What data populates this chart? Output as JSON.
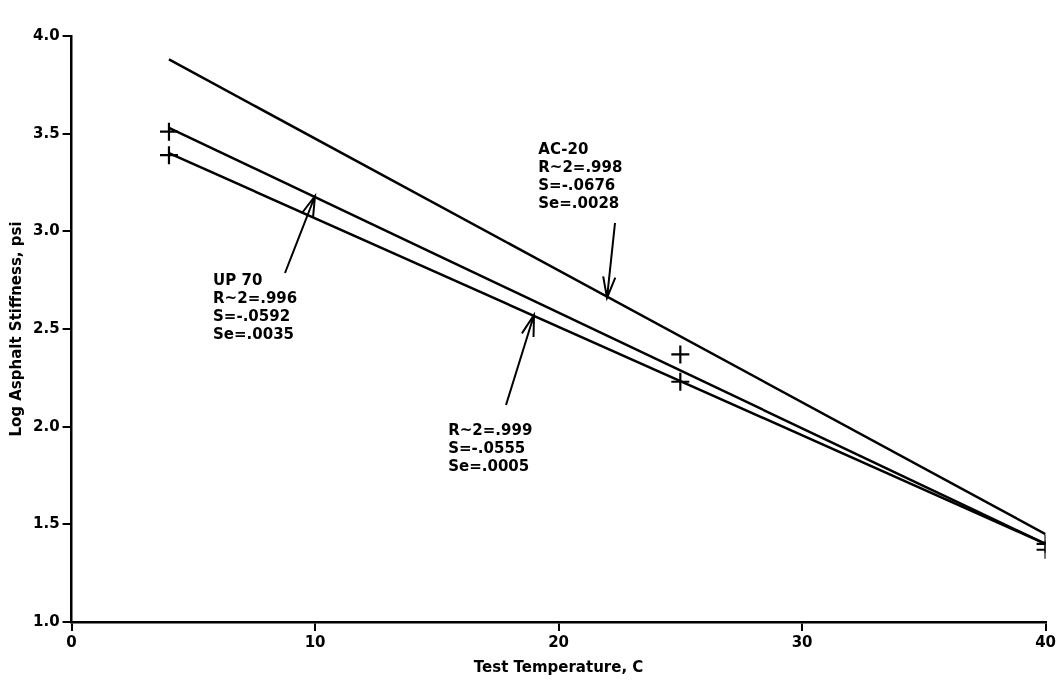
{
  "chart_data": {
    "type": "line",
    "xlabel": "Test Temperature, C",
    "ylabel": "Log Asphalt Stiffness, psi",
    "xlim": [
      0,
      40
    ],
    "xticks": [
      0,
      10,
      20,
      30,
      40
    ],
    "ylim": [
      1,
      4
    ],
    "yticks": [
      {
        "value": 1,
        "label": "1.0"
      },
      {
        "value": 1.5,
        "label": "1.5"
      },
      {
        "value": 2,
        "label": "2.0"
      },
      {
        "value": 2.5,
        "label": "2.5"
      },
      {
        "value": 3,
        "label": "3.0"
      },
      {
        "value": 3.5,
        "label": "3.5"
      },
      {
        "value": 4,
        "label": "4.0"
      }
    ],
    "grid": false,
    "legend": false,
    "line_style": "solid",
    "series": [
      {
        "color": "#000000",
        "marker": "none",
        "x": [
          4,
          40
        ],
        "values": [
          3.88,
          1.45
        ]
      },
      {
        "color": "#000000",
        "marker": "none",
        "x": [
          4,
          40
        ],
        "values": [
          3.53,
          1.4
        ]
      },
      {
        "color": "#000000",
        "marker": "none",
        "x": [
          4,
          40
        ],
        "values": [
          3.4,
          1.4
        ]
      },
      {
        "type": "scatter",
        "color": "#000000",
        "marker": "cross",
        "x": [
          4,
          25,
          40
        ],
        "values": [
          3.51,
          2.37,
          1.37
        ]
      },
      {
        "type": "scatter",
        "color": "#000000",
        "marker": "cross",
        "x": [
          4,
          25,
          40
        ],
        "values": [
          3.39,
          2.23,
          1.4
        ]
      }
    ],
    "annotations": [
      {
        "text": "UP 70\nR~2=.996\nS=-.0592\nSe=.0035",
        "x": 10,
        "y": 3.18
      },
      {
        "text": "AC-20\nR~2=.998\nS=-.0676\nSe=.0028",
        "x": 22,
        "y": 2.66
      },
      {
        "text": "R~2=.999\nS=-.0555\nSe=.0005",
        "x": 19,
        "y": 2.57
      }
    ]
  }
}
